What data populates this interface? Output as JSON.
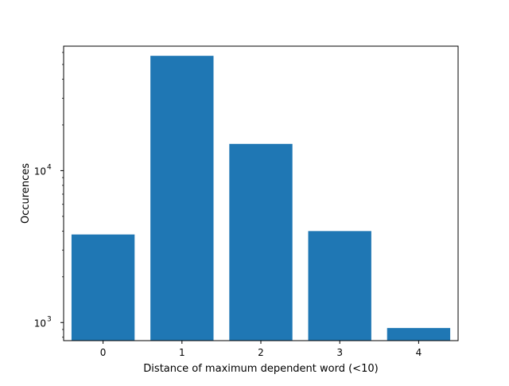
{
  "chart_data": {
    "type": "bar",
    "title": "",
    "xlabel": "Distance of maximum dependent word (<10)",
    "ylabel": "Occurences",
    "categories": [
      "0",
      "1",
      "2",
      "3",
      "4"
    ],
    "values": [
      3800,
      57000,
      15000,
      4000,
      920
    ],
    "yscale": "log",
    "ylim": [
      760,
      66000
    ],
    "xlim": [
      -0.5,
      4.5
    ],
    "bar_width": 0.8,
    "y_tick_values": [
      1000,
      10000
    ],
    "y_tick_labels": [
      {
        "base": "10",
        "exp": "3"
      },
      {
        "base": "10",
        "exp": "4"
      }
    ],
    "grid": false,
    "legend": "none",
    "bar_color": "#1f77b4"
  }
}
